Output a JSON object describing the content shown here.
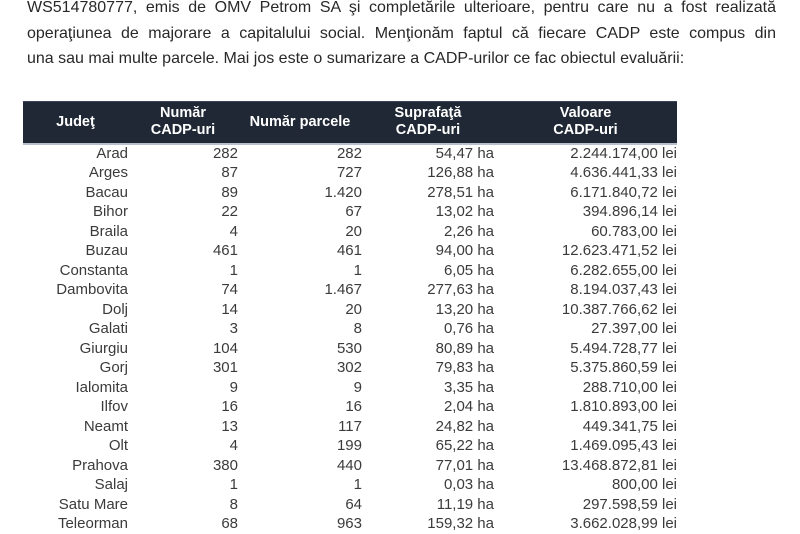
{
  "paragraph": {
    "lines": [
      "WS514780777, emis de OMV Petrom SA şi completările ulterioare, pentru care nu a fost realizată",
      "operaţiunea de majorare a capitalului social. Menţionăm faptul că fiecare CADP este compus din",
      "una sau mai multe parcele. Mai jos este o sumarizare  a CADP-urilor ce fac obiectul evaluării:"
    ]
  },
  "table": {
    "headers": [
      {
        "id": "judet",
        "label": "Judeţ"
      },
      {
        "id": "numar_cadp",
        "label": "Număr\nCADP-uri"
      },
      {
        "id": "numar_parcele",
        "label": "Număr parcele"
      },
      {
        "id": "suprafata",
        "label": "Suprafaţă\nCADP-uri"
      },
      {
        "id": "valoare",
        "label": "Valoare\nCADP-uri"
      }
    ],
    "rows": [
      {
        "judet": "Arad",
        "numar_cadp": "282",
        "numar_parcele": "282",
        "suprafata": "54,47 ha",
        "valoare": "2.244.174,00 lei"
      },
      {
        "judet": "Arges",
        "numar_cadp": "87",
        "numar_parcele": "727",
        "suprafata": "126,88 ha",
        "valoare": "4.636.441,33 lei"
      },
      {
        "judet": "Bacau",
        "numar_cadp": "89",
        "numar_parcele": "1.420",
        "suprafata": "278,51 ha",
        "valoare": "6.171.840,72 lei"
      },
      {
        "judet": "Bihor",
        "numar_cadp": "22",
        "numar_parcele": "67",
        "suprafata": "13,02 ha",
        "valoare": "394.896,14 lei"
      },
      {
        "judet": "Braila",
        "numar_cadp": "4",
        "numar_parcele": "20",
        "suprafata": "2,26 ha",
        "valoare": "60.783,00 lei"
      },
      {
        "judet": "Buzau",
        "numar_cadp": "461",
        "numar_parcele": "461",
        "suprafata": "94,00 ha",
        "valoare": "12.623.471,52 lei"
      },
      {
        "judet": "Constanta",
        "numar_cadp": "1",
        "numar_parcele": "1",
        "suprafata": "6,05 ha",
        "valoare": "6.282.655,00 lei"
      },
      {
        "judet": "Dambovita",
        "numar_cadp": "74",
        "numar_parcele": "1.467",
        "suprafata": "277,63 ha",
        "valoare": "8.194.037,43 lei"
      },
      {
        "judet": "Dolj",
        "numar_cadp": "14",
        "numar_parcele": "20",
        "suprafata": "13,20 ha",
        "valoare": "10.387.766,62 lei"
      },
      {
        "judet": "Galati",
        "numar_cadp": "3",
        "numar_parcele": "8",
        "suprafata": "0,76 ha",
        "valoare": "27.397,00 lei"
      },
      {
        "judet": "Giurgiu",
        "numar_cadp": "104",
        "numar_parcele": "530",
        "suprafata": "80,89 ha",
        "valoare": "5.494.728,77 lei"
      },
      {
        "judet": "Gorj",
        "numar_cadp": "301",
        "numar_parcele": "302",
        "suprafata": "79,83 ha",
        "valoare": "5.375.860,59 lei"
      },
      {
        "judet": "Ialomita",
        "numar_cadp": "9",
        "numar_parcele": "9",
        "suprafata": "3,35 ha",
        "valoare": "288.710,00 lei"
      },
      {
        "judet": "Ilfov",
        "numar_cadp": "16",
        "numar_parcele": "16",
        "suprafata": "2,04 ha",
        "valoare": "1.810.893,00 lei"
      },
      {
        "judet": "Neamt",
        "numar_cadp": "13",
        "numar_parcele": "117",
        "suprafata": "24,82 ha",
        "valoare": "449.341,75 lei"
      },
      {
        "judet": "Olt",
        "numar_cadp": "4",
        "numar_parcele": "199",
        "suprafata": "65,22 ha",
        "valoare": "1.469.095,43 lei"
      },
      {
        "judet": "Prahova",
        "numar_cadp": "380",
        "numar_parcele": "440",
        "suprafata": "77,01 ha",
        "valoare": "13.468.872,81 lei"
      },
      {
        "judet": "Salaj",
        "numar_cadp": "1",
        "numar_parcele": "1",
        "suprafata": "0,03 ha",
        "valoare": "800,00 lei"
      },
      {
        "judet": "Satu Mare",
        "numar_cadp": "8",
        "numar_parcele": "64",
        "suprafata": "11,19 ha",
        "valoare": "297.598,59 lei"
      },
      {
        "judet": "Teleorman",
        "numar_cadp": "68",
        "numar_parcele": "963",
        "suprafata": "159,32 ha",
        "valoare": "3.662.028,99 lei"
      }
    ]
  },
  "colors": {
    "header_bg": "#1f2834",
    "header_text": "#ffffff",
    "body_text": "#3b3b3b",
    "paragraph_text": "#282828"
  }
}
